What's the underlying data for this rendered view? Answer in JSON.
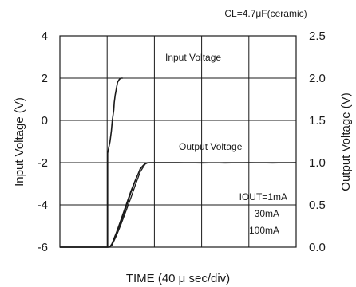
{
  "chart_data": {
    "type": "line",
    "title": "CL=4.7μF(ceramic)",
    "xlabel": "TIME (40 μ sec/div)",
    "ylabel_left": "Input Voltage (V)",
    "ylabel_right": "Output Voltage (V)",
    "y_left": {
      "lim": [
        -6,
        4
      ],
      "ticks": [
        "4",
        "2",
        "0",
        "-2",
        "-4",
        "-6"
      ]
    },
    "y_right": {
      "lim": [
        0.0,
        2.5
      ],
      "ticks": [
        "2.5",
        "2.0",
        "1.5",
        "1.0",
        "0.5",
        "0.0"
      ]
    },
    "x_divisions": 5,
    "x_unit": "div",
    "grid": true,
    "annotations": {
      "input": "Input Voltage",
      "output": "Output Voltage",
      "iout_1": "IOUT=1mA",
      "iout_2": "30mA",
      "iout_3": "100mA"
    },
    "series": [
      {
        "axis": "left",
        "x": [
          0.0,
          1.01,
          1.01,
          1.06,
          1.09,
          1.11,
          1.14,
          1.15,
          1.17,
          1.2,
          1.22,
          1.25,
          1.27,
          1.29,
          1.31,
          1.33
        ],
        "y": [
          -6.0,
          -6.0,
          -1.55,
          -1.0,
          -0.5,
          0.0,
          0.5,
          0.85,
          1.2,
          1.55,
          1.8,
          1.92,
          1.97,
          2.0,
          2.0,
          2.0
        ]
      },
      {
        "axis": "right",
        "x": [
          0.0,
          1.05,
          1.1,
          1.2,
          1.3,
          1.4,
          1.5,
          1.6,
          1.7,
          1.75,
          1.8,
          1.85,
          1.9,
          2.0,
          2.5,
          3.0,
          3.5,
          4.0,
          4.5,
          5.0
        ],
        "y": [
          0.0,
          0.0,
          0.04,
          0.18,
          0.34,
          0.5,
          0.66,
          0.8,
          0.92,
          0.96,
          0.985,
          0.995,
          1.0,
          1.0,
          1.0,
          1.0,
          0.995,
          1.0,
          1.0,
          1.0
        ]
      },
      {
        "axis": "right",
        "x": [
          0.0,
          1.05,
          1.1,
          1.2,
          1.3,
          1.4,
          1.5,
          1.6,
          1.7,
          1.8,
          1.85,
          1.9,
          2.0,
          2.5,
          3.0,
          3.5,
          4.0,
          4.5,
          5.0
        ],
        "y": [
          0.0,
          0.0,
          0.03,
          0.17,
          0.31,
          0.47,
          0.64,
          0.79,
          0.93,
          0.99,
          1.0,
          1.0,
          1.0,
          1.0,
          1.0,
          1.0,
          1.0,
          0.995,
          1.0
        ]
      },
      {
        "axis": "right",
        "x": [
          0.0,
          1.05,
          1.1,
          1.2,
          1.3,
          1.4,
          1.5,
          1.6,
          1.7,
          1.8,
          1.86,
          1.9,
          2.0,
          2.5,
          3.0,
          3.5,
          4.0,
          4.5,
          5.0
        ],
        "y": [
          0.0,
          0.0,
          0.02,
          0.14,
          0.28,
          0.43,
          0.58,
          0.74,
          0.89,
          0.98,
          1.0,
          1.0,
          1.0,
          1.0,
          0.995,
          1.0,
          1.0,
          1.0,
          1.0
        ]
      }
    ]
  }
}
